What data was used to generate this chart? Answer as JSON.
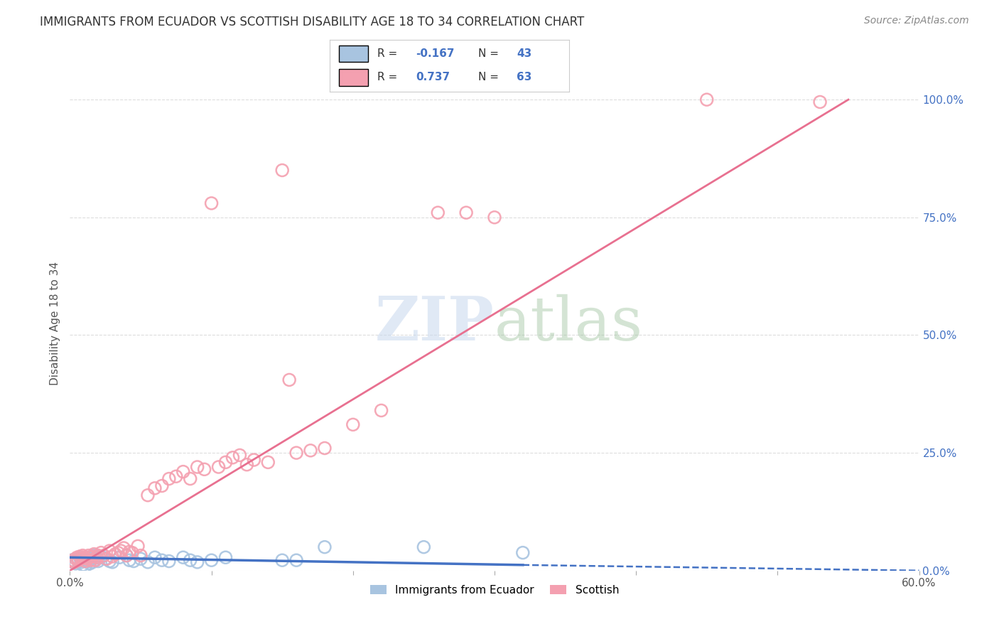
{
  "title": "IMMIGRANTS FROM ECUADOR VS SCOTTISH DISABILITY AGE 18 TO 34 CORRELATION CHART",
  "source": "Source: ZipAtlas.com",
  "ylabel": "Disability Age 18 to 34",
  "xlim": [
    0.0,
    0.6
  ],
  "ylim": [
    0.0,
    1.05
  ],
  "xticks": [
    0.0,
    0.1,
    0.2,
    0.3,
    0.4,
    0.5,
    0.6
  ],
  "xticklabels": [
    "0.0%",
    "",
    "",
    "",
    "",
    "",
    "60.0%"
  ],
  "ytick_right_labels": [
    "0.0%",
    "25.0%",
    "50.0%",
    "75.0%",
    "100.0%"
  ],
  "blue_color": "#a8c4e0",
  "pink_color": "#f4a0b0",
  "blue_line_color": "#4472c4",
  "pink_line_color": "#e87090",
  "legend_R_blue": "-0.167",
  "legend_N_blue": "43",
  "legend_R_pink": "0.737",
  "legend_N_pink": "63",
  "legend_label_blue": "Immigrants from Ecuador",
  "legend_label_pink": "Scottish",
  "watermark": "ZIPatlas",
  "background_color": "#ffffff",
  "grid_color": "#dddddd",
  "title_color": "#333333",
  "right_axis_color": "#4472c4",
  "blue_scatter": [
    [
      0.001,
      0.022
    ],
    [
      0.002,
      0.018
    ],
    [
      0.003,
      0.02
    ],
    [
      0.004,
      0.015
    ],
    [
      0.005,
      0.025
    ],
    [
      0.006,
      0.02
    ],
    [
      0.007,
      0.028
    ],
    [
      0.008,
      0.018
    ],
    [
      0.009,
      0.012
    ],
    [
      0.01,
      0.022
    ],
    [
      0.011,
      0.01
    ],
    [
      0.012,
      0.028
    ],
    [
      0.013,
      0.02
    ],
    [
      0.014,
      0.015
    ],
    [
      0.015,
      0.025
    ],
    [
      0.016,
      0.018
    ],
    [
      0.017,
      0.032
    ],
    [
      0.018,
      0.022
    ],
    [
      0.019,
      0.028
    ],
    [
      0.02,
      0.02
    ],
    [
      0.022,
      0.03
    ],
    [
      0.025,
      0.025
    ],
    [
      0.028,
      0.02
    ],
    [
      0.03,
      0.018
    ],
    [
      0.035,
      0.028
    ],
    [
      0.04,
      0.032
    ],
    [
      0.042,
      0.022
    ],
    [
      0.045,
      0.02
    ],
    [
      0.05,
      0.025
    ],
    [
      0.055,
      0.018
    ],
    [
      0.06,
      0.028
    ],
    [
      0.065,
      0.022
    ],
    [
      0.07,
      0.02
    ],
    [
      0.08,
      0.028
    ],
    [
      0.085,
      0.022
    ],
    [
      0.09,
      0.018
    ],
    [
      0.1,
      0.022
    ],
    [
      0.11,
      0.028
    ],
    [
      0.15,
      0.022
    ],
    [
      0.16,
      0.022
    ],
    [
      0.18,
      0.05
    ],
    [
      0.25,
      0.05
    ],
    [
      0.32,
      0.038
    ]
  ],
  "pink_scatter": [
    [
      0.001,
      0.02
    ],
    [
      0.002,
      0.022
    ],
    [
      0.003,
      0.018
    ],
    [
      0.004,
      0.025
    ],
    [
      0.005,
      0.028
    ],
    [
      0.006,
      0.022
    ],
    [
      0.007,
      0.03
    ],
    [
      0.008,
      0.025
    ],
    [
      0.009,
      0.032
    ],
    [
      0.01,
      0.028
    ],
    [
      0.011,
      0.02
    ],
    [
      0.012,
      0.025
    ],
    [
      0.013,
      0.032
    ],
    [
      0.014,
      0.028
    ],
    [
      0.015,
      0.022
    ],
    [
      0.016,
      0.03
    ],
    [
      0.017,
      0.035
    ],
    [
      0.018,
      0.022
    ],
    [
      0.019,
      0.028
    ],
    [
      0.02,
      0.032
    ],
    [
      0.022,
      0.038
    ],
    [
      0.024,
      0.032
    ],
    [
      0.026,
      0.025
    ],
    [
      0.028,
      0.042
    ],
    [
      0.03,
      0.03
    ],
    [
      0.032,
      0.035
    ],
    [
      0.034,
      0.038
    ],
    [
      0.036,
      0.042
    ],
    [
      0.038,
      0.048
    ],
    [
      0.04,
      0.032
    ],
    [
      0.042,
      0.04
    ],
    [
      0.044,
      0.038
    ],
    [
      0.048,
      0.052
    ],
    [
      0.05,
      0.032
    ],
    [
      0.055,
      0.16
    ],
    [
      0.06,
      0.175
    ],
    [
      0.065,
      0.18
    ],
    [
      0.07,
      0.195
    ],
    [
      0.075,
      0.2
    ],
    [
      0.08,
      0.21
    ],
    [
      0.085,
      0.195
    ],
    [
      0.09,
      0.22
    ],
    [
      0.095,
      0.215
    ],
    [
      0.1,
      0.78
    ],
    [
      0.105,
      0.22
    ],
    [
      0.11,
      0.23
    ],
    [
      0.115,
      0.24
    ],
    [
      0.12,
      0.245
    ],
    [
      0.125,
      0.225
    ],
    [
      0.13,
      0.235
    ],
    [
      0.14,
      0.23
    ],
    [
      0.15,
      0.85
    ],
    [
      0.155,
      0.405
    ],
    [
      0.16,
      0.25
    ],
    [
      0.17,
      0.255
    ],
    [
      0.18,
      0.26
    ],
    [
      0.2,
      0.31
    ],
    [
      0.22,
      0.34
    ],
    [
      0.26,
      0.76
    ],
    [
      0.28,
      0.76
    ],
    [
      0.3,
      0.75
    ],
    [
      0.45,
      1.0
    ],
    [
      0.53,
      0.995
    ]
  ],
  "pink_line": [
    [
      0.0,
      0.0
    ],
    [
      0.55,
      1.0
    ]
  ],
  "blue_line_solid": [
    [
      0.0,
      0.028
    ],
    [
      0.32,
      0.012
    ]
  ],
  "blue_line_dash": [
    [
      0.32,
      0.012
    ],
    [
      0.6,
      0.0
    ]
  ]
}
